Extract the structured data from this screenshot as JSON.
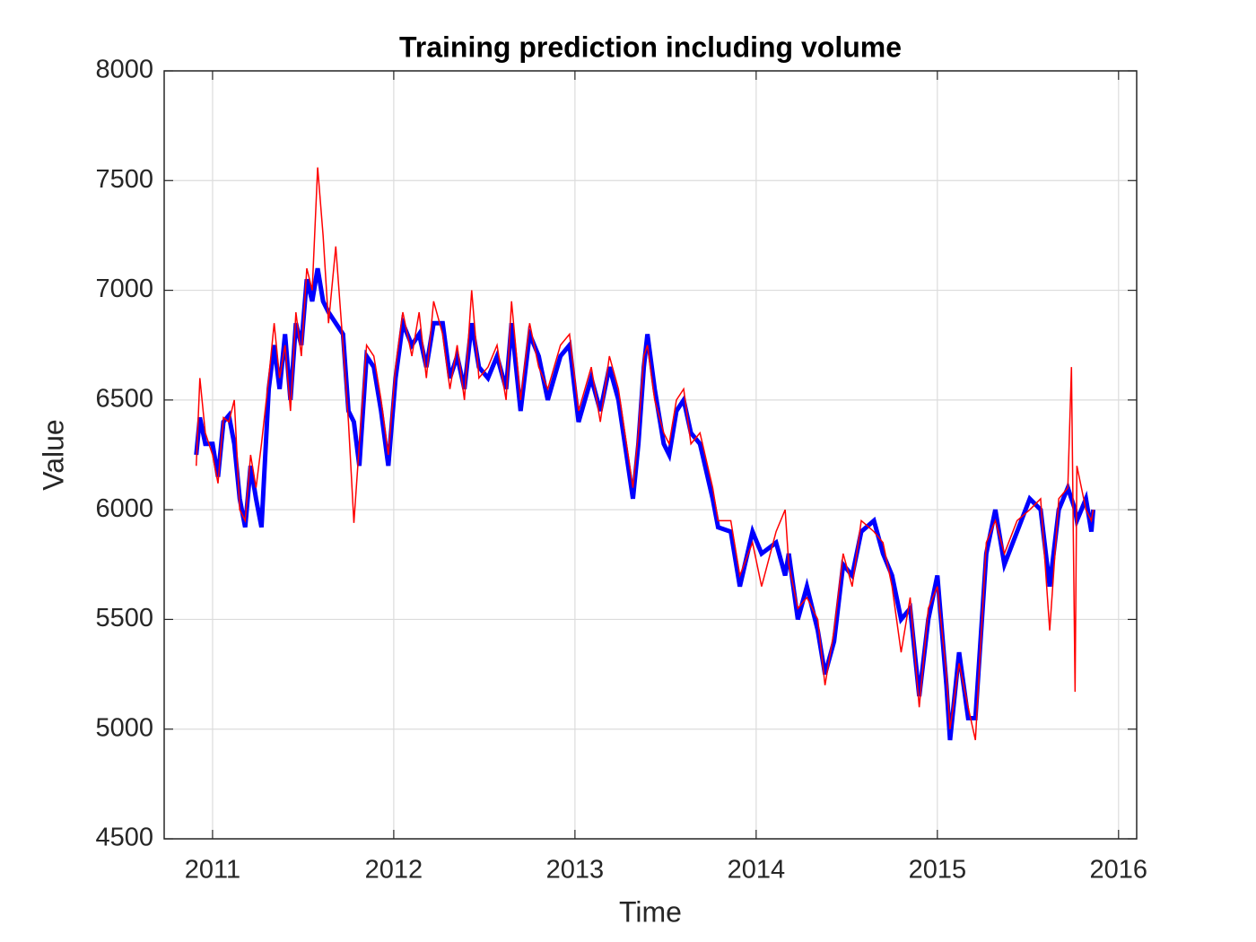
{
  "chart_data": {
    "type": "line",
    "title": "Training prediction including volume",
    "x_label": "Time",
    "y_label": "Value",
    "x": [
      2010.91,
      2010.93,
      2010.96,
      2011.0,
      2011.03,
      2011.06,
      2011.09,
      2011.12,
      2011.15,
      2011.18,
      2011.21,
      2011.24,
      2011.27,
      2011.31,
      2011.34,
      2011.37,
      2011.4,
      2011.43,
      2011.46,
      2011.49,
      2011.52,
      2011.55,
      2011.58,
      2011.61,
      2011.64,
      2011.68,
      2011.72,
      2011.75,
      2011.78,
      2011.81,
      2011.85,
      2011.89,
      2011.93,
      2011.97,
      2012.01,
      2012.05,
      2012.1,
      2012.14,
      2012.18,
      2012.22,
      2012.27,
      2012.31,
      2012.35,
      2012.39,
      2012.43,
      2012.47,
      2012.52,
      2012.57,
      2012.62,
      2012.65,
      2012.7,
      2012.75,
      2012.8,
      2012.85,
      2012.92,
      2012.97,
      2013.02,
      2013.09,
      2013.14,
      2013.19,
      2013.24,
      2013.32,
      2013.35,
      2013.38,
      2013.4,
      2013.44,
      2013.49,
      2013.52,
      2013.56,
      2013.6,
      2013.64,
      2013.69,
      2013.76,
      2013.79,
      2013.86,
      2013.91,
      2013.98,
      2014.03,
      2014.11,
      2014.16,
      2014.18,
      2014.23,
      2014.28,
      2014.34,
      2014.38,
      2014.43,
      2014.48,
      2014.53,
      2014.58,
      2014.65,
      2014.7,
      2014.75,
      2014.8,
      2014.85,
      2014.9,
      2014.95,
      2015.0,
      2015.05,
      2015.07,
      2015.12,
      2015.17,
      2015.21,
      2015.27,
      2015.32,
      2015.37,
      2015.44,
      2015.51,
      2015.57,
      2015.62,
      2015.67,
      2015.72,
      2015.74,
      2015.76,
      2015.77,
      2015.82,
      2015.85,
      2015.86
    ],
    "series": [
      {
        "color": "#0000ff",
        "width": 5,
        "values": [
          6250,
          6420,
          6300,
          6300,
          6150,
          6400,
          6430,
          6300,
          6050,
          5920,
          6200,
          6050,
          5920,
          6550,
          6750,
          6550,
          6800,
          6500,
          6850,
          6750,
          7050,
          6950,
          7100,
          6950,
          6900,
          6850,
          6800,
          6450,
          6400,
          6200,
          6700,
          6650,
          6450,
          6200,
          6600,
          6850,
          6750,
          6800,
          6650,
          6850,
          6850,
          6600,
          6700,
          6550,
          6850,
          6650,
          6600,
          6700,
          6550,
          6850,
          6450,
          6800,
          6700,
          6500,
          6700,
          6750,
          6400,
          6600,
          6450,
          6650,
          6500,
          6050,
          6300,
          6650,
          6800,
          6550,
          6300,
          6250,
          6450,
          6500,
          6350,
          6300,
          6050,
          5920,
          5900,
          5650,
          5900,
          5800,
          5850,
          5700,
          5800,
          5500,
          5650,
          5450,
          5250,
          5400,
          5750,
          5700,
          5900,
          5950,
          5800,
          5700,
          5500,
          5550,
          5150,
          5500,
          5700,
          5200,
          4950,
          5350,
          5050,
          5050,
          5800,
          6000,
          5750,
          5900,
          6050,
          6000,
          5650,
          6000,
          6100,
          6050,
          6000,
          5950,
          6050,
          5900,
          6000
        ]
      },
      {
        "color": "#ff0000",
        "width": 1.5,
        "values": [
          6200,
          6600,
          6350,
          6250,
          6120,
          6420,
          6400,
          6500,
          6000,
          5950,
          6250,
          6100,
          6300,
          6600,
          6850,
          6600,
          6750,
          6450,
          6900,
          6700,
          7100,
          7000,
          7560,
          7250,
          6850,
          7200,
          6750,
          6400,
          5940,
          6300,
          6750,
          6700,
          6500,
          6250,
          6650,
          6900,
          6700,
          6900,
          6600,
          6950,
          6800,
          6550,
          6750,
          6500,
          7000,
          6600,
          6650,
          6750,
          6500,
          6950,
          6500,
          6850,
          6650,
          6550,
          6750,
          6800,
          6450,
          6650,
          6400,
          6700,
          6550,
          6100,
          6350,
          6700,
          6750,
          6500,
          6350,
          6300,
          6500,
          6550,
          6300,
          6350,
          6100,
          5950,
          5950,
          5700,
          5850,
          5650,
          5900,
          6000,
          5750,
          5550,
          5600,
          5500,
          5200,
          5450,
          5800,
          5650,
          5950,
          5900,
          5850,
          5650,
          5350,
          5600,
          5100,
          5550,
          5650,
          5250,
          5000,
          5300,
          5100,
          4950,
          5850,
          5950,
          5800,
          5950,
          6000,
          6050,
          5450,
          6050,
          6100,
          6650,
          5170,
          6200,
          6000,
          5950,
          6000
        ]
      }
    ],
    "xlim": [
      2010.733,
      2016.1
    ],
    "xticks": [
      2011,
      2012,
      2013,
      2014,
      2015,
      2016
    ],
    "ylim": [
      4500,
      8000
    ],
    "yticks": [
      4500,
      5000,
      5500,
      6000,
      6500,
      7000,
      7500,
      8000
    ],
    "grid": true
  }
}
